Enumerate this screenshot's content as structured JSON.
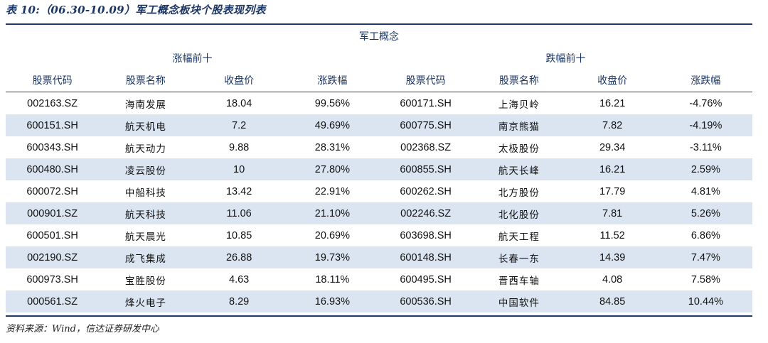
{
  "title": "表 10:（06.30-10.09）军工概念板块个股表现列表",
  "group_title": "军工概念",
  "left_section": "涨幅前十",
  "right_section": "跌幅前十",
  "columns": [
    "股票代码",
    "股票名称",
    "收盘价",
    "涨跌幅",
    "股票代码",
    "股票名称",
    "收盘价",
    "涨跌幅"
  ],
  "rows": [
    [
      "002163.SZ",
      "海南发展",
      "18.04",
      "99.56%",
      "600171.SH",
      "上海贝岭",
      "16.21",
      "-4.76%"
    ],
    [
      "600151.SH",
      "航天机电",
      "7.2",
      "49.69%",
      "600775.SH",
      "南京熊猫",
      "7.82",
      "-4.19%"
    ],
    [
      "600343.SH",
      "航天动力",
      "9.88",
      "28.31%",
      "002368.SZ",
      "太极股份",
      "29.34",
      "-3.11%"
    ],
    [
      "600480.SH",
      "凌云股份",
      "10",
      "27.80%",
      "600855.SH",
      "航天长峰",
      "16.21",
      "2.59%"
    ],
    [
      "600072.SH",
      "中船科技",
      "13.42",
      "22.91%",
      "600262.SH",
      "北方股份",
      "17.79",
      "4.81%"
    ],
    [
      "000901.SZ",
      "航天科技",
      "11.06",
      "21.10%",
      "002246.SZ",
      "北化股份",
      "7.81",
      "5.26%"
    ],
    [
      "600501.SH",
      "航天晨光",
      "10.85",
      "20.69%",
      "603698.SH",
      "航天工程",
      "11.52",
      "6.86%"
    ],
    [
      "002190.SZ",
      "成飞集成",
      "26.88",
      "19.73%",
      "600148.SH",
      "长春一东",
      "14.39",
      "7.47%"
    ],
    [
      "600973.SH",
      "宝胜股份",
      "4.63",
      "18.11%",
      "600495.SH",
      "晋西车轴",
      "4.08",
      "7.58%"
    ],
    [
      "000561.SZ",
      "烽火电子",
      "8.29",
      "16.93%",
      "600536.SH",
      "中国软件",
      "84.85",
      "10.44%"
    ]
  ],
  "source": "资料来源：Wind，信达证券研发中心"
}
